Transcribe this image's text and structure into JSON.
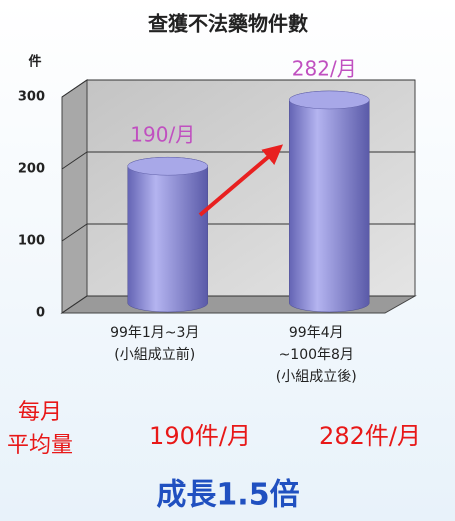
{
  "chart_data": {
    "type": "bar",
    "title": "查獲不法藥物件數",
    "y_label": "件",
    "categories": [
      [
        "99年1月~3月",
        "(小組成立前)"
      ],
      [
        "99年4月",
        "~100年8月",
        "(小組成立後)"
      ]
    ],
    "values": [
      190,
      282
    ],
    "value_labels": [
      "190/月",
      "282/月"
    ],
    "color": "#8c8cd8",
    "ylim": [
      0,
      300
    ],
    "yticks": [
      0,
      100,
      200,
      300
    ],
    "grid": true
  },
  "summary": {
    "row_label": [
      "每月",
      "平均量"
    ],
    "monthly": [
      "190件/月",
      "282件/月"
    ],
    "conclusion": "成長1.5倍"
  }
}
